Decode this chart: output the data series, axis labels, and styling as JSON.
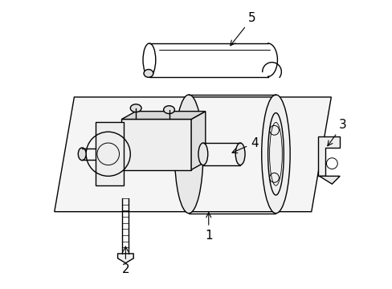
{
  "background_color": "#ffffff",
  "line_color": "#000000",
  "figsize": [
    4.89,
    3.6
  ],
  "dpi": 100,
  "lw": 1.0
}
